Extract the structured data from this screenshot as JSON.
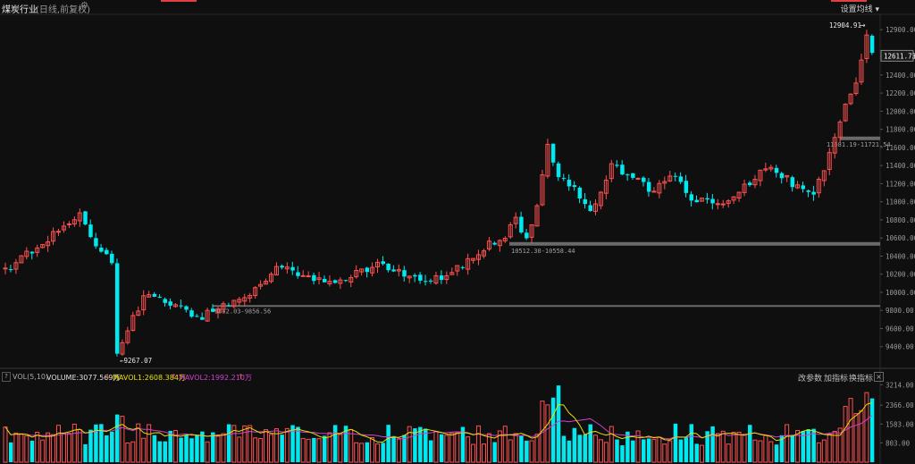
{
  "header": {
    "title": "煤炭行业",
    "subtitle": "(日线,前复权)",
    "ma_setting": "设置均线"
  },
  "volume_panel": {
    "indicator": "VOL(5,10)",
    "volume_label": "VOLUME:3077.569万",
    "mavol1_label": "MAVOL1:2608.384万",
    "mavol2_label": "MAVOL2:1992.210万",
    "buttons": [
      "改参数",
      "加指标",
      "换指标"
    ]
  },
  "chart_data": {
    "type": "candlestick",
    "y_ticks": [
      "12900.00",
      "12600.00",
      "12400.00",
      "12200.00",
      "12000.00",
      "11800.00",
      "11600.00",
      "11400.00",
      "11200.00",
      "11000.00",
      "10800.00",
      "10600.00",
      "10400.00",
      "10200.00",
      "10000.00",
      "9800.00",
      "9600.00",
      "9400.00"
    ],
    "ylim": [
      9200,
      13050
    ],
    "current_price": "12611.73",
    "annotations": {
      "high": "12904.91",
      "low": "9267.07",
      "range1": "9842.03-9856.56",
      "range2": "10512.30-10558.44",
      "range3": "11681.19-11721.54"
    },
    "volume_ticks": [
      "3214.00",
      "2366.00",
      "1583.00",
      "803.00"
    ],
    "volume_ylim": [
      0,
      3300
    ],
    "colors": {
      "up": "#ff5050",
      "down": "#00e8f0",
      "mavol1": "#e8e000",
      "mavol2": "#d040d0"
    }
  }
}
